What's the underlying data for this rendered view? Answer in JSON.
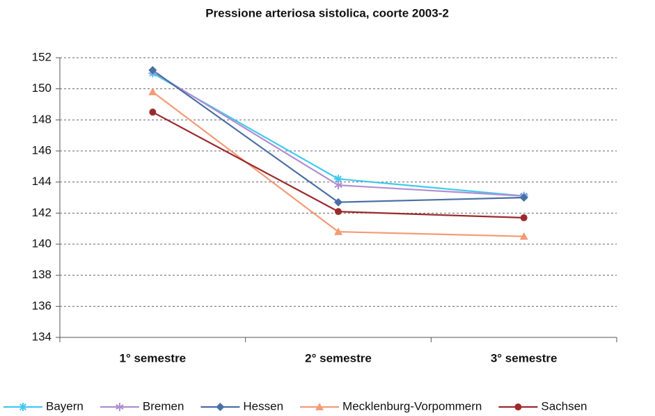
{
  "chart_data": {
    "type": "line",
    "title": "Pressione arteriosa sistolica, coorte 2003-2",
    "categories": [
      "1° semestre",
      "2° semestre",
      "3° semestre"
    ],
    "series": [
      {
        "name": "Bayern",
        "color": "#3fc9f0",
        "marker": "asterisk",
        "values": [
          151.0,
          144.2,
          143.1
        ]
      },
      {
        "name": "Bremen",
        "color": "#b18ed1",
        "marker": "star",
        "values": [
          151.1,
          143.8,
          143.1
        ]
      },
      {
        "name": "Hessen",
        "color": "#4a6fa5",
        "marker": "diamond",
        "values": [
          151.2,
          142.7,
          143.0
        ]
      },
      {
        "name": "Mecklenburg-Vorpommern",
        "color": "#f59a74",
        "marker": "triangle",
        "values": [
          149.8,
          140.8,
          140.5
        ]
      },
      {
        "name": "Sachsen",
        "color": "#9b2a2d",
        "marker": "circle",
        "values": [
          148.5,
          142.1,
          141.7
        ]
      }
    ],
    "ylim": [
      134,
      152
    ],
    "yticks": [
      134,
      136,
      138,
      140,
      142,
      144,
      146,
      148,
      150,
      152
    ],
    "grid": true,
    "legend": "bottom"
  }
}
